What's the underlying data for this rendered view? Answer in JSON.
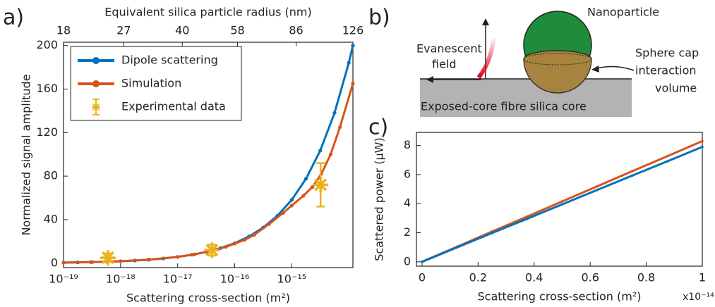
{
  "panel_labels": [
    "a)",
    "b)",
    "c)"
  ],
  "diagram": {
    "nanoparticle_label": "Nanoparticle",
    "evanescent_label": [
      "Evanescent",
      "field"
    ],
    "sphere_cap_label": [
      "Sphere cap",
      "interaction",
      "volume"
    ],
    "fibre_label": "Exposed-core fibre silica core"
  },
  "chart_data": [
    {
      "type": "line",
      "xlabel": "Scattering cross-section (m²)",
      "ylabel": "Normalized signal amplitude",
      "x2label": "Equivalent silica particle radius (nm)",
      "xscale": "log",
      "xlim": [
        1e-19,
        1.18e-14
      ],
      "xticks": [
        {
          "value": 1e-19,
          "label": "10⁻¹⁹"
        },
        {
          "value": 1e-18,
          "label": "10⁻¹⁸"
        },
        {
          "value": 1e-17,
          "label": "10⁻¹⁷"
        },
        {
          "value": 1e-16,
          "label": "10⁻¹⁶"
        },
        {
          "value": 1e-15,
          "label": "10⁻¹⁵"
        }
      ],
      "x2scale": "log",
      "x2lim": [
        18,
        126
      ],
      "x2ticks": [
        18,
        27,
        40,
        58,
        86,
        126
      ],
      "ylim": [
        -4,
        203
      ],
      "yticks": [
        0,
        40,
        80,
        120,
        160,
        200
      ],
      "legend": "upper left",
      "series": [
        {
          "name": "Dipole scattering",
          "color": "#0072bd",
          "x": [
            1e-19,
            1.778e-19,
            3.162e-19,
            5.623e-19,
            1e-18,
            1.778e-18,
            3.162e-18,
            5.623e-18,
            1e-17,
            1.778e-17,
            3.162e-17,
            5.623e-17,
            1e-16,
            1.778e-16,
            3.162e-16,
            5.623e-16,
            1e-15,
            1.778e-15,
            3.162e-15,
            5.623e-15,
            1e-14,
            1.18e-14
          ],
          "values": [
            0.58,
            0.78,
            1.04,
            1.38,
            1.84,
            2.46,
            3.27,
            4.37,
            5.82,
            7.76,
            10.35,
            13.81,
            18.41,
            24.55,
            32.74,
            43.66,
            58.22,
            77.63,
            103.5,
            138.1,
            184.1,
            200
          ]
        },
        {
          "name": "Simulation",
          "color": "#d95319",
          "x": [
            1e-19,
            3e-19,
            1e-18,
            3e-18,
            1e-17,
            2e-17,
            4e-17,
            7e-17,
            1e-16,
            1.5e-16,
            2.2e-16,
            4e-16,
            7e-16,
            1e-15,
            1.6e-15,
            2.3e-15,
            3.3e-15,
            4.8e-15,
            7e-15,
            1.18e-14
          ],
          "values": [
            0.5,
            1,
            1.8,
            3.2,
            5.8,
            8.2,
            11.5,
            15,
            18,
            21.5,
            26,
            36,
            46,
            53,
            62,
            70,
            82,
            100,
            125,
            165
          ]
        },
        {
          "name": "Experimental data",
          "color": "#edb120",
          "marker": "asterisk",
          "x": [
            6e-19,
            4e-17,
            3.2e-15
          ],
          "values": [
            5,
            12,
            72
          ],
          "errors": [
            4,
            5,
            20
          ]
        }
      ]
    },
    {
      "type": "line",
      "xlabel": "Scattering cross-section (m²)",
      "ylabel": "Scattered power (μW)",
      "x_multiplier": "x10⁻¹⁴",
      "xlim": [
        -0.02,
        1.0
      ],
      "xticks": [
        0,
        0.2,
        0.4,
        0.6,
        0.8,
        1
      ],
      "ylim": [
        -0.3,
        8.9
      ],
      "yticks": [
        0,
        2,
        4,
        6,
        8
      ],
      "series": [
        {
          "color": "#d95319",
          "x": [
            0,
            0.125,
            0.25,
            0.375,
            0.5,
            0.625,
            0.75,
            0.875,
            1
          ],
          "values": [
            0,
            1.04,
            2.08,
            3.11,
            4.15,
            5.19,
            6.23,
            7.26,
            8.3
          ]
        },
        {
          "color": "#0072bd",
          "x": [
            0,
            0.125,
            0.25,
            0.375,
            0.5,
            0.625,
            0.75,
            0.875,
            1
          ],
          "values": [
            0,
            0.99,
            1.98,
            2.96,
            3.95,
            4.94,
            5.93,
            6.91,
            7.9
          ]
        }
      ]
    }
  ]
}
